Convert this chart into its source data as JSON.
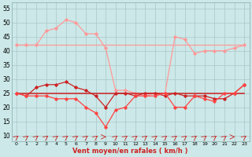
{
  "x": [
    0,
    1,
    2,
    3,
    4,
    5,
    6,
    7,
    8,
    9,
    10,
    11,
    12,
    13,
    14,
    15,
    16,
    17,
    18,
    19,
    20,
    21,
    22,
    23
  ],
  "line_flat": [
    42,
    42,
    42,
    42,
    42,
    42,
    42,
    42,
    42,
    42,
    42,
    42,
    42,
    42,
    42,
    42,
    42,
    42,
    42,
    42,
    42,
    42,
    42,
    42
  ],
  "line_rafales": [
    42,
    42,
    42,
    47,
    48,
    51,
    50,
    46,
    46,
    41,
    26,
    26,
    25,
    24,
    25,
    25,
    45,
    44,
    39,
    40,
    40,
    40,
    41,
    42
  ],
  "line_moyen_markers": [
    25,
    24,
    27,
    28,
    28,
    29,
    27,
    26,
    24,
    20,
    25,
    25,
    24,
    25,
    25,
    24,
    25,
    24,
    24,
    24,
    23,
    23,
    25,
    28
  ],
  "line_flat2": [
    25,
    25,
    25,
    25,
    25,
    25,
    25,
    25,
    25,
    25,
    25,
    25,
    25,
    25,
    25,
    25,
    25,
    25,
    25,
    25,
    25,
    25,
    25,
    25
  ],
  "line_vent": [
    25,
    24,
    24,
    24,
    23,
    23,
    23,
    20,
    18,
    13,
    19,
    20,
    24,
    24,
    24,
    25,
    20,
    20,
    24,
    23,
    22,
    25,
    25,
    28
  ],
  "xlabel": "Vent moyen/en rafales ( km/h )",
  "ylabel_ticks": [
    10,
    15,
    20,
    25,
    30,
    35,
    40,
    45,
    50,
    55
  ],
  "bg_color": "#cce8e8",
  "grid_color": "#aac8c8",
  "color_light": "#ff9999",
  "color_dark": "#cc2222",
  "color_mid": "#ff4444",
  "wind_arrows": [
    1,
    1,
    1,
    1,
    1,
    1,
    1,
    1,
    1,
    0,
    1,
    1,
    1,
    1,
    1,
    1,
    1,
    1,
    1,
    1,
    1,
    1,
    0,
    1
  ]
}
